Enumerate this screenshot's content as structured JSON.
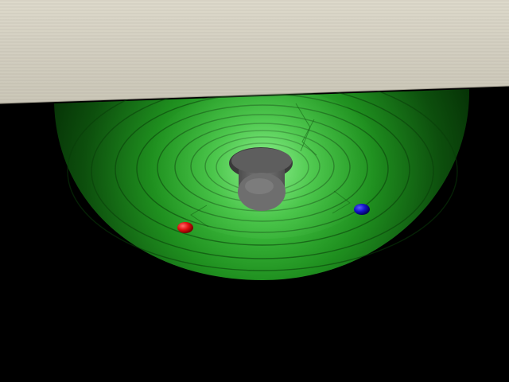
{
  "scene": {
    "type": "3d-render",
    "background_color": "#000000",
    "ceiling_panel": {
      "color": "#d4d0c2"
    },
    "funnel_bowl": {
      "color": "#1e8a1e",
      "rings": 12
    },
    "center_hole": {
      "color": "#6a6a6a"
    },
    "balls": [
      {
        "name": "red-ball",
        "color": "#e01010"
      },
      {
        "name": "blue-ball",
        "color": "#1414c8"
      }
    ]
  }
}
